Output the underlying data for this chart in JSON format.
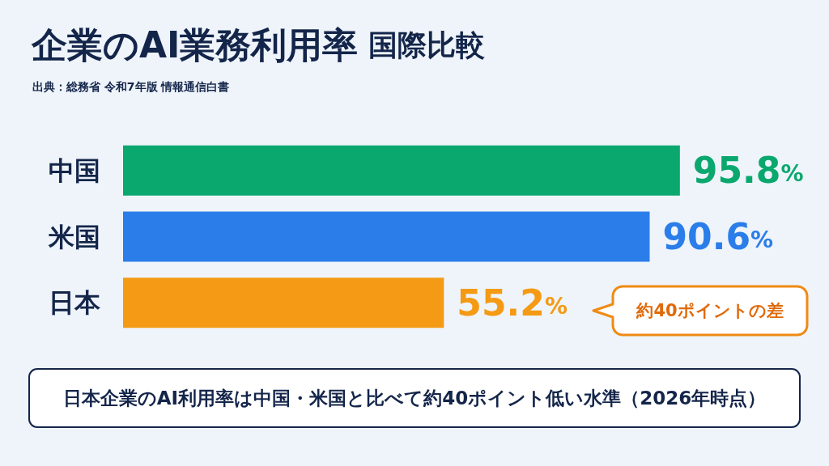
{
  "chart_data": {
    "type": "bar",
    "orientation": "horizontal",
    "title": "企業のAI業務利用率 国際比較",
    "categories": [
      "中国",
      "米国",
      "日本"
    ],
    "values": [
      95.8,
      90.6,
      55.2
    ],
    "colors": [
      "#0aa86e",
      "#2b7de9",
      "#f59a14"
    ],
    "value_labels": [
      "95.8%",
      "90.6%",
      "55.2%"
    ],
    "tick_labels": "y",
    "annotations": [
      "出典：総務省 令和7年版 情報通信白書",
      "約40ポイントの差",
      "日本企業のAI利用率は中国・米国と比べて約40ポイント低い水準（2026年時点）"
    ]
  }
}
